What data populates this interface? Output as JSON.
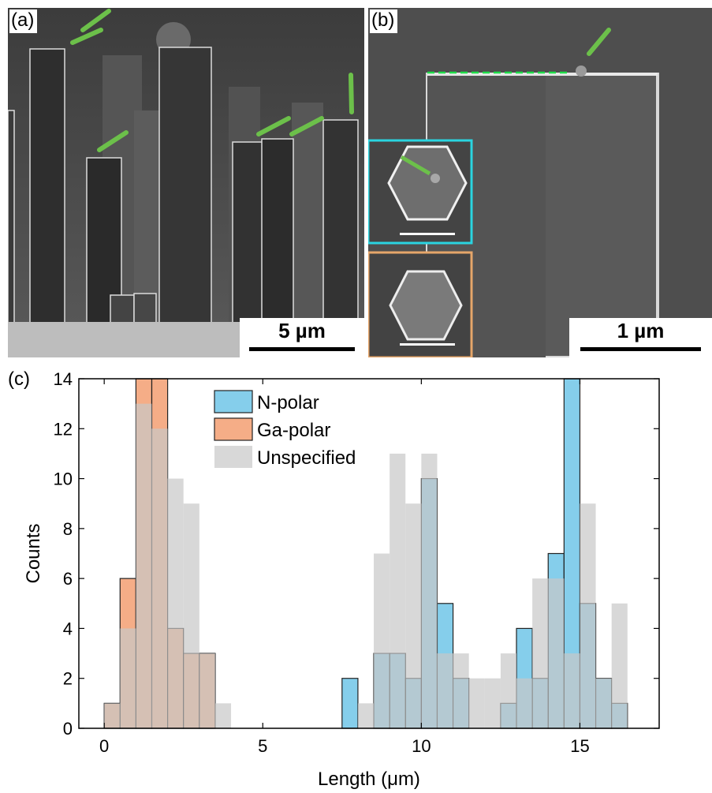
{
  "panel_a": {
    "label": "(a)",
    "scale_label": "5 µm"
  },
  "panel_b": {
    "label": "(b)",
    "scale_label": "1 µm",
    "inset_top_border_color": "#2ad4e0",
    "inset_bottom_border_color": "#e6a66a"
  },
  "panel_c": {
    "label": "(c)"
  },
  "colors": {
    "n_polar": "#7ecbea",
    "ga_polar": "#f4a47a",
    "unspecified": "#c8c8c8",
    "arrow": "#6cc04a",
    "dashed_line": "#1fe04a"
  },
  "chart_data": {
    "type": "bar",
    "title": "",
    "xlabel": "Length (μm)",
    "ylabel": "Counts",
    "xlim": [
      -0.8,
      17.5
    ],
    "ylim": [
      0,
      14
    ],
    "xticks": [
      0,
      5,
      10,
      15
    ],
    "yticks": [
      0,
      2,
      4,
      6,
      8,
      10,
      12,
      14
    ],
    "legend_position": "top-center",
    "bin_width": 0.5,
    "series": [
      {
        "name": "N-polar",
        "bins": [
          {
            "start": 7.5,
            "count": 2
          },
          {
            "start": 8.5,
            "count": 3
          },
          {
            "start": 9.0,
            "count": 3
          },
          {
            "start": 9.5,
            "count": 2
          },
          {
            "start": 10.0,
            "count": 10
          },
          {
            "start": 10.5,
            "count": 5
          },
          {
            "start": 11.0,
            "count": 2
          },
          {
            "start": 12.5,
            "count": 1
          },
          {
            "start": 13.0,
            "count": 4
          },
          {
            "start": 13.5,
            "count": 2
          },
          {
            "start": 14.0,
            "count": 7
          },
          {
            "start": 14.5,
            "count": 14
          },
          {
            "start": 15.0,
            "count": 5
          },
          {
            "start": 15.5,
            "count": 2
          },
          {
            "start": 16.0,
            "count": 1
          }
        ]
      },
      {
        "name": "Ga-polar",
        "bins": [
          {
            "start": 0.0,
            "count": 1
          },
          {
            "start": 0.5,
            "count": 6
          },
          {
            "start": 1.0,
            "count": 14
          },
          {
            "start": 1.5,
            "count": 14
          },
          {
            "start": 2.0,
            "count": 4
          },
          {
            "start": 2.5,
            "count": 3
          },
          {
            "start": 3.0,
            "count": 3
          }
        ]
      },
      {
        "name": "Unspecified",
        "bins": [
          {
            "start": 0.0,
            "count": 1
          },
          {
            "start": 0.5,
            "count": 4
          },
          {
            "start": 1.0,
            "count": 13
          },
          {
            "start": 1.5,
            "count": 12
          },
          {
            "start": 2.0,
            "count": 10
          },
          {
            "start": 2.5,
            "count": 9
          },
          {
            "start": 3.0,
            "count": 3
          },
          {
            "start": 3.5,
            "count": 1
          },
          {
            "start": 8.0,
            "count": 1
          },
          {
            "start": 8.5,
            "count": 7
          },
          {
            "start": 9.0,
            "count": 11
          },
          {
            "start": 9.5,
            "count": 9
          },
          {
            "start": 10.0,
            "count": 11
          },
          {
            "start": 10.5,
            "count": 3
          },
          {
            "start": 11.0,
            "count": 3
          },
          {
            "start": 11.5,
            "count": 2
          },
          {
            "start": 12.0,
            "count": 2
          },
          {
            "start": 12.5,
            "count": 3
          },
          {
            "start": 13.0,
            "count": 2
          },
          {
            "start": 13.5,
            "count": 6
          },
          {
            "start": 14.0,
            "count": 6
          },
          {
            "start": 14.5,
            "count": 3
          },
          {
            "start": 15.0,
            "count": 9
          },
          {
            "start": 15.5,
            "count": 2
          },
          {
            "start": 16.0,
            "count": 5
          }
        ]
      }
    ]
  }
}
